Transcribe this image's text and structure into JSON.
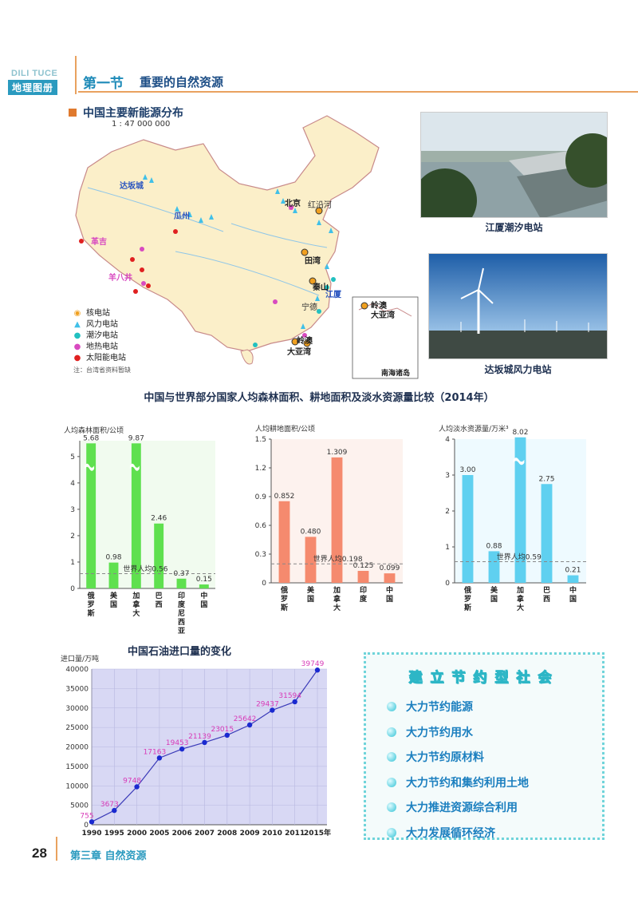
{
  "header": {
    "series_en": "DILI TUCE",
    "series_cn": "地理图册",
    "section_no": "第一节",
    "section_title": "重要的自然资源"
  },
  "map": {
    "title": "中国主要新能源分布",
    "scale": "1 : 47 000 000",
    "labels": [
      "达坂城",
      "瓜州",
      "革吉",
      "羊八井",
      "北京",
      "红沿河",
      "田湾",
      "秦山",
      "江厦",
      "宁德",
      "岭澳",
      "大亚湾",
      "岭澳",
      "大亚湾",
      "南海诸岛"
    ],
    "legend": [
      "核电站",
      "风力电站",
      "潮汐电站",
      "地热电站",
      "太阳能电站"
    ],
    "note": "注：台湾省资料暂缺"
  },
  "photos": [
    {
      "caption": "江厦潮汐电站"
    },
    {
      "caption": "达坂城风力电站"
    }
  ],
  "compare_title": "中国与世界部分国家人均森林面积、耕地面积及淡水资源量比较（2014年）",
  "chart_data": [
    {
      "type": "bar",
      "ylabel": "人均森林面积/公顷",
      "categories": [
        "俄罗斯",
        "美国",
        "加拿大",
        "巴西",
        "印度尼西亚",
        "中国"
      ],
      "values": [
        5.68,
        0.98,
        9.87,
        2.46,
        0.37,
        0.15
      ],
      "labels": [
        "5.68",
        "0.98",
        "9.87",
        "2.46",
        "0.37",
        "0.15"
      ],
      "yticks": [
        "0",
        "1",
        "2",
        "3",
        "4",
        "5"
      ],
      "world_avg": 0.56,
      "world_label": "世界人均0.56",
      "broken_axis": true,
      "color": "#5fe04f"
    },
    {
      "type": "bar",
      "ylabel": "人均耕地面积/公顷",
      "categories": [
        "俄罗斯",
        "美国",
        "加拿大",
        "印度",
        "中国"
      ],
      "values": [
        0.852,
        0.48,
        1.309,
        0.125,
        0.099
      ],
      "labels": [
        "0.852",
        "0.480",
        "1.309",
        "0.125",
        "0.099"
      ],
      "yticks": [
        "0",
        "0.3",
        "0.6",
        "0.9",
        "1.2",
        "1.5"
      ],
      "world_avg": 0.198,
      "world_label": "世界人均0.198",
      "color": "#f58a6e"
    },
    {
      "type": "bar",
      "ylabel": "人均淡水资源量/万米³",
      "categories": [
        "俄罗斯",
        "美国",
        "加拿大",
        "巴西",
        "中国"
      ],
      "values": [
        3.0,
        0.88,
        8.02,
        2.75,
        0.21
      ],
      "labels": [
        "3.00",
        "0.88",
        "8.02",
        "2.75",
        "0.21"
      ],
      "yticks": [
        "0",
        "1",
        "2",
        "3",
        "4"
      ],
      "world_avg": 0.59,
      "world_label": "世界人均0.59",
      "broken_axis": true,
      "color": "#5fd0f0"
    },
    {
      "type": "line",
      "title": "中国石油进口量的变化",
      "ylabel": "进口量/万吨",
      "x": [
        "1990",
        "1995",
        "2000",
        "2005",
        "2006",
        "2007",
        "2008",
        "2009",
        "2010",
        "2011",
        "2015年"
      ],
      "values": [
        755,
        3673,
        9748,
        17163,
        19453,
        21139,
        23015,
        25642,
        29437,
        31594,
        39749
      ],
      "labels": [
        "755",
        "3673",
        "9748",
        "17163",
        "19453",
        "21139",
        "23015",
        "25642",
        "29437",
        "31594",
        "39749"
      ],
      "yticks": [
        "0",
        "5000",
        "10000",
        "15000",
        "20000",
        "25000",
        "30000",
        "35000",
        "40000"
      ],
      "ylim": [
        0,
        40000
      ],
      "color": "#1a2ad0"
    }
  ],
  "box": {
    "title": "建立节约型社会",
    "items": [
      "大力节约能源",
      "大力节约用水",
      "大力节约原材料",
      "大力节约和集约利用土地",
      "大力推进资源综合利用",
      "大力发展循环经济"
    ]
  },
  "footer": {
    "page": "28",
    "chapter": "第三章 自然资源"
  }
}
